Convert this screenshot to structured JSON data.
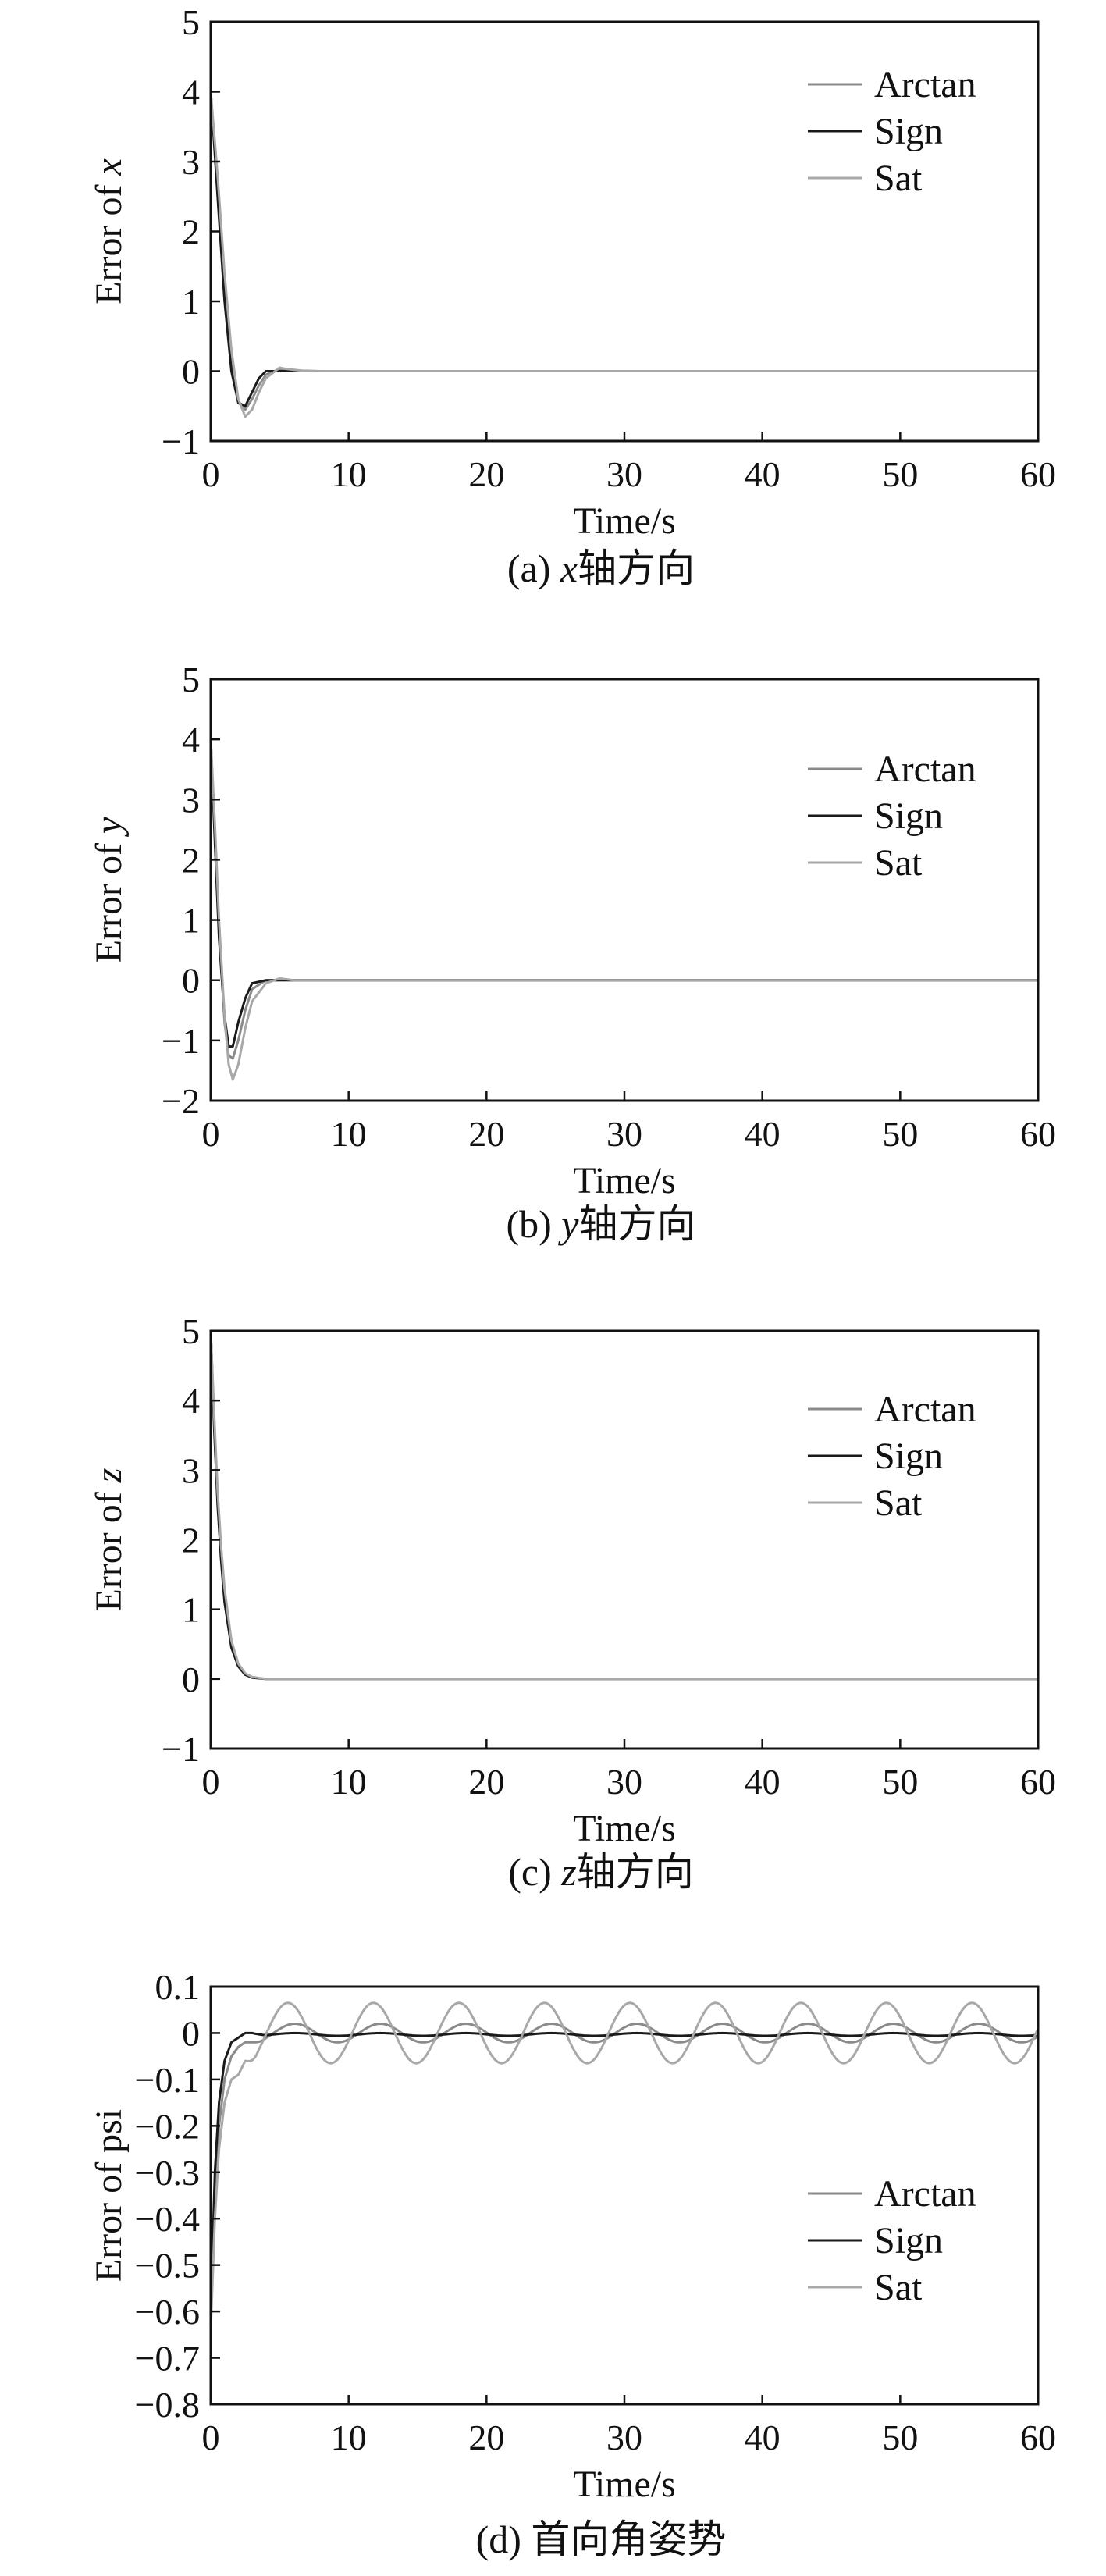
{
  "chart_data": [
    {
      "type": "line",
      "xlabel": "Time/s",
      "ylabel_prefix": "Error of ",
      "ylabel_var": "x",
      "caption_prefix": "(a) ",
      "caption_var": "x",
      "caption_suffix": "轴方向",
      "xlim": [
        0,
        60
      ],
      "ylim": [
        -1,
        5
      ],
      "xticks": [
        0,
        10,
        20,
        30,
        40,
        50,
        60
      ],
      "yticks": [
        -1,
        0,
        1,
        2,
        3,
        4,
        5
      ],
      "grid": false,
      "legend_placement": "top-right",
      "legend": [
        "Arctan",
        "Sign",
        "Sat"
      ],
      "series": [
        {
          "name": "Arctan",
          "color": "#8a8a8a",
          "x": [
            0,
            0.5,
            1,
            1.5,
            2,
            2.5,
            3,
            3.5,
            4,
            5,
            6,
            8,
            60
          ],
          "y": [
            4,
            2.6,
            1.1,
            0.1,
            -0.45,
            -0.55,
            -0.4,
            -0.2,
            -0.05,
            0.03,
            0.01,
            0,
            0
          ]
        },
        {
          "name": "Sign",
          "color": "#1a1a1a",
          "x": [
            0,
            0.5,
            1,
            1.5,
            2,
            2.5,
            3,
            3.5,
            4,
            5,
            6,
            60
          ],
          "y": [
            4,
            2.5,
            1.0,
            0.0,
            -0.45,
            -0.5,
            -0.3,
            -0.1,
            0,
            0,
            0,
            0
          ]
        },
        {
          "name": "Sat",
          "color": "#a8a8a8",
          "x": [
            0,
            0.5,
            1,
            1.5,
            2,
            2.5,
            3,
            3.5,
            4,
            5,
            5.5,
            7,
            60
          ],
          "y": [
            4,
            2.8,
            1.4,
            0.3,
            -0.4,
            -0.65,
            -0.55,
            -0.3,
            -0.1,
            0.05,
            0.03,
            0,
            0
          ]
        }
      ]
    },
    {
      "type": "line",
      "xlabel": "Time/s",
      "ylabel_prefix": "Error of ",
      "ylabel_var": "y",
      "caption_prefix": "(b) ",
      "caption_var": "y",
      "caption_suffix": "轴方向",
      "xlim": [
        0,
        60
      ],
      "ylim": [
        -2,
        5
      ],
      "xticks": [
        0,
        10,
        20,
        30,
        40,
        50,
        60
      ],
      "yticks": [
        -2,
        -1,
        0,
        1,
        2,
        3,
        4,
        5
      ],
      "grid": false,
      "legend_placement": "top-right",
      "legend": [
        "Arctan",
        "Sign",
        "Sat"
      ],
      "series": [
        {
          "name": "Arctan",
          "color": "#8a8a8a",
          "x": [
            0,
            0.3,
            0.6,
            1,
            1.3,
            1.6,
            2,
            2.5,
            3,
            4,
            5,
            60
          ],
          "y": [
            4,
            2.4,
            0.8,
            -0.7,
            -1.25,
            -1.3,
            -1.0,
            -0.5,
            -0.15,
            0,
            0,
            0
          ]
        },
        {
          "name": "Sign",
          "color": "#1a1a1a",
          "x": [
            0,
            0.3,
            0.6,
            1,
            1.3,
            1.6,
            2,
            2.5,
            3,
            4,
            60
          ],
          "y": [
            4,
            2.3,
            0.7,
            -0.6,
            -1.1,
            -1.1,
            -0.7,
            -0.3,
            -0.05,
            0,
            0
          ]
        },
        {
          "name": "Sat",
          "color": "#a8a8a8",
          "x": [
            0,
            0.3,
            0.6,
            1,
            1.3,
            1.6,
            2,
            2.5,
            3,
            4,
            5,
            6,
            60
          ],
          "y": [
            4,
            2.6,
            1.0,
            -0.6,
            -1.4,
            -1.65,
            -1.4,
            -0.8,
            -0.35,
            -0.05,
            0.03,
            0,
            0
          ]
        }
      ]
    },
    {
      "type": "line",
      "xlabel": "Time/s",
      "ylabel_prefix": "Error of ",
      "ylabel_var": "z",
      "caption_prefix": "(c) ",
      "caption_var": "z",
      "caption_suffix": "轴方向",
      "xlim": [
        0,
        60
      ],
      "ylim": [
        -1,
        5
      ],
      "xticks": [
        0,
        10,
        20,
        30,
        40,
        50,
        60
      ],
      "yticks": [
        -1,
        0,
        1,
        2,
        3,
        4,
        5
      ],
      "grid": false,
      "legend_placement": "top-right",
      "legend": [
        "Arctan",
        "Sign",
        "Sat"
      ],
      "series": [
        {
          "name": "Arctan",
          "color": "#8a8a8a",
          "x": [
            0,
            0.25,
            0.5,
            0.75,
            1,
            1.5,
            2,
            2.5,
            3,
            4,
            60
          ],
          "y": [
            5,
            3.7,
            2.6,
            1.8,
            1.2,
            0.5,
            0.2,
            0.07,
            0.02,
            0,
            0
          ]
        },
        {
          "name": "Sign",
          "color": "#1a1a1a",
          "x": [
            0,
            0.25,
            0.5,
            0.75,
            1,
            1.5,
            2,
            2.5,
            3,
            4,
            60
          ],
          "y": [
            5,
            3.6,
            2.5,
            1.7,
            1.1,
            0.45,
            0.18,
            0.06,
            0.02,
            0,
            0
          ]
        },
        {
          "name": "Sat",
          "color": "#a8a8a8",
          "x": [
            0,
            0.25,
            0.5,
            0.75,
            1,
            1.5,
            2,
            2.5,
            3,
            4,
            60
          ],
          "y": [
            5,
            3.8,
            2.7,
            1.9,
            1.3,
            0.55,
            0.22,
            0.08,
            0.03,
            0,
            0
          ]
        }
      ]
    },
    {
      "type": "line",
      "xlabel": "Time/s",
      "ylabel_prefix": "Error of psi",
      "ylabel_var": "",
      "caption_prefix": "(d) ",
      "caption_var": "",
      "caption_suffix": "首向角姿势",
      "xlim": [
        0,
        60
      ],
      "ylim": [
        -0.8,
        0.1
      ],
      "xticks": [
        0,
        10,
        20,
        30,
        40,
        50,
        60
      ],
      "yticks": [
        -0.8,
        -0.7,
        -0.6,
        -0.5,
        -0.4,
        -0.3,
        -0.2,
        -0.1,
        0,
        0.1
      ],
      "grid": false,
      "legend_placement": "center-right",
      "legend": [
        "Arctan",
        "Sign",
        "Sat"
      ],
      "series": [
        {
          "name": "Arctan",
          "color": "#8a8a8a",
          "transient": {
            "x": [
              0,
              0.3,
              0.6,
              1,
              1.5,
              2,
              2.5,
              3
            ],
            "y": [
              -0.62,
              -0.35,
              -0.2,
              -0.1,
              -0.05,
              -0.03,
              -0.02,
              -0.02
            ]
          },
          "oscillation": {
            "amplitude": 0.02,
            "period": 6.2,
            "phase_start": 3,
            "offset": 0
          },
          "x": [
            0,
            1,
            2,
            3,
            60
          ],
          "y": [
            -0.62,
            -0.1,
            -0.03,
            -0.02,
            0
          ]
        },
        {
          "name": "Sign",
          "color": "#1a1a1a",
          "transient": {
            "x": [
              0,
              0.3,
              0.6,
              1,
              1.5,
              2,
              2.5,
              3
            ],
            "y": [
              -0.6,
              -0.3,
              -0.15,
              -0.06,
              -0.02,
              -0.01,
              0,
              0
            ]
          },
          "oscillation": {
            "amplitude": 0.003,
            "period": 6.2,
            "phase_start": 3,
            "offset": -0.003
          },
          "x": [
            0,
            1,
            2,
            3,
            60
          ],
          "y": [
            -0.6,
            -0.06,
            -0.01,
            0,
            0
          ]
        },
        {
          "name": "Sat",
          "color": "#a8a8a8",
          "transient": {
            "x": [
              0,
              0.3,
              0.6,
              1,
              1.5,
              2,
              2.5
            ],
            "y": [
              -0.64,
              -0.4,
              -0.25,
              -0.15,
              -0.1,
              -0.09,
              -0.06
            ]
          },
          "oscillation": {
            "amplitude": 0.065,
            "period": 6.2,
            "phase_start": 2.5,
            "offset": 0
          },
          "x": [
            0,
            1,
            2,
            2.5,
            60
          ],
          "y": [
            -0.64,
            -0.15,
            -0.09,
            -0.06,
            0
          ]
        }
      ]
    }
  ]
}
